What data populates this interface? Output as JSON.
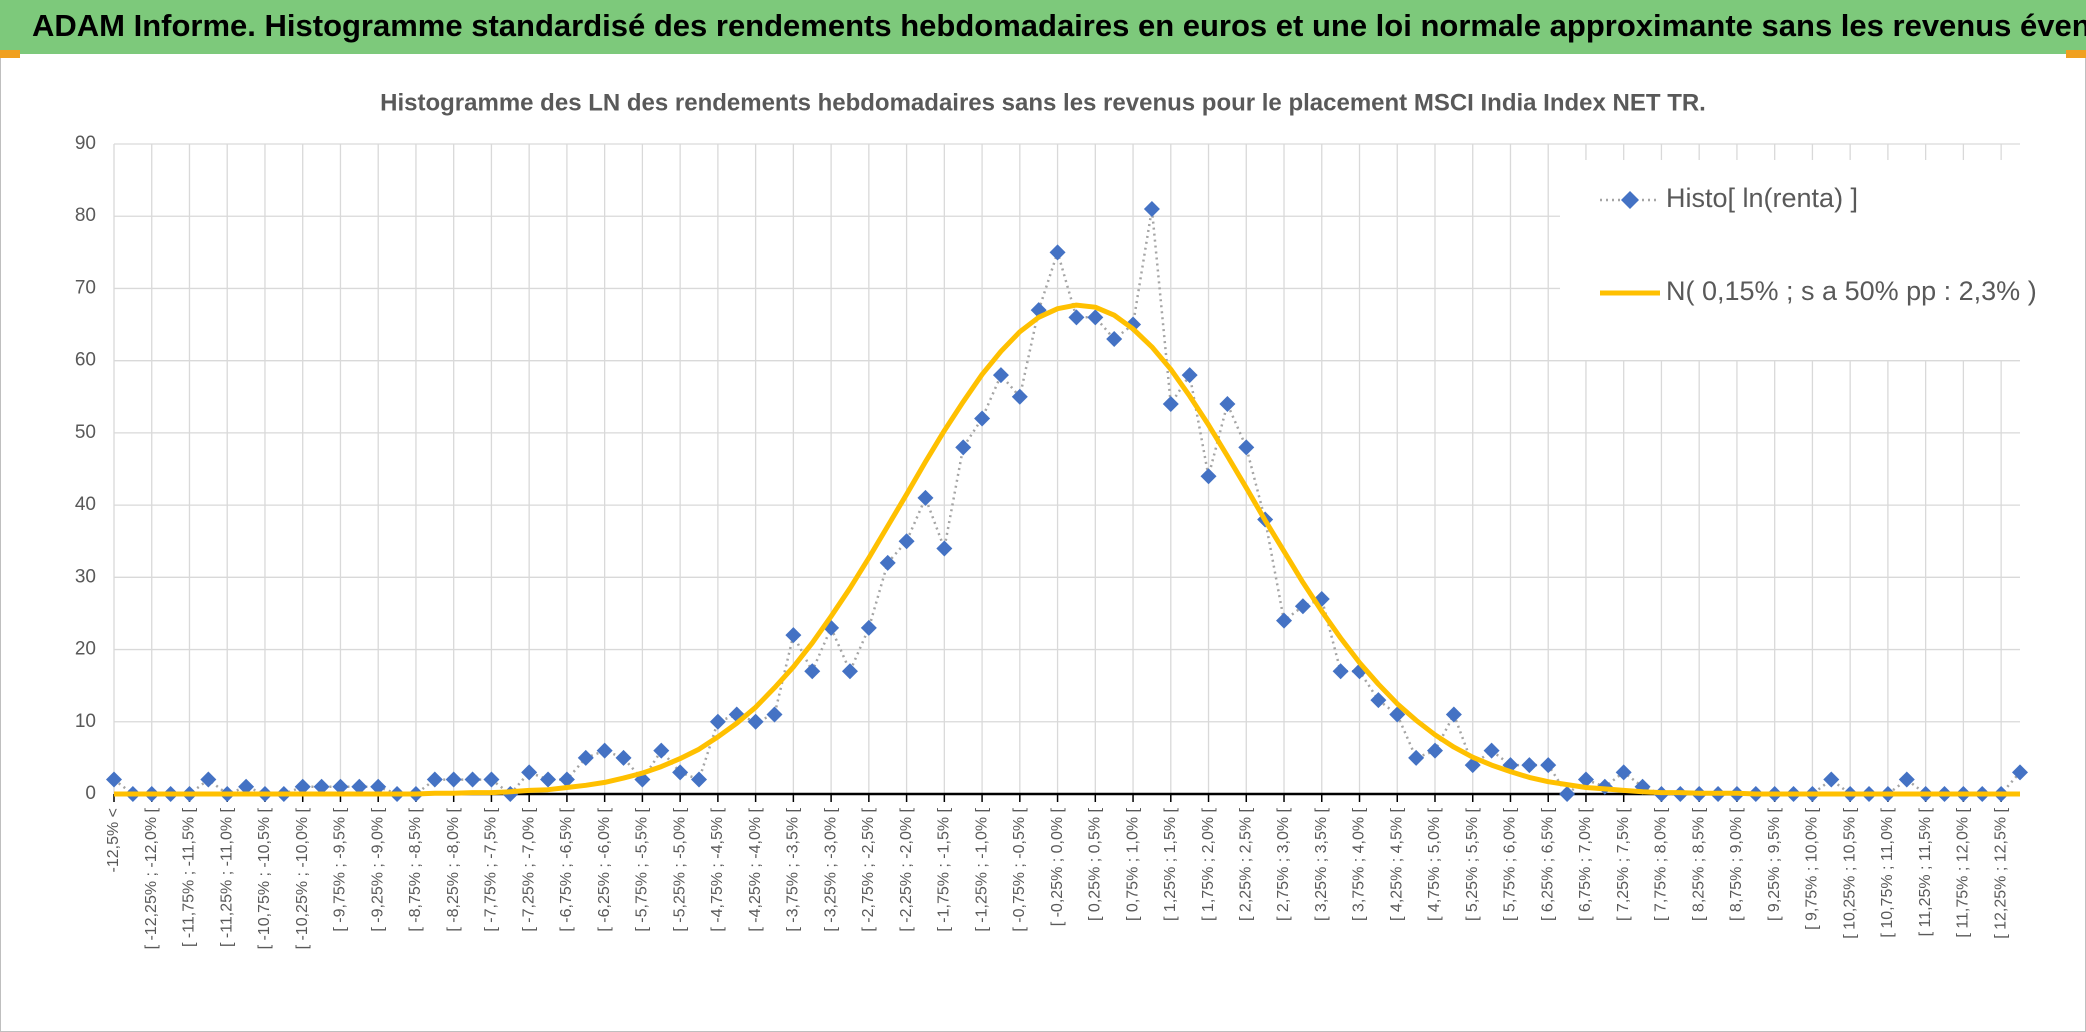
{
  "header": {
    "title": "ADAM Informe. Histogramme standardisé des rendements hebdomadaires en euros et une loi normale approximante sans les revenus éventuels"
  },
  "chart_data": {
    "type": "line",
    "title": "Histogramme des LN des rendements hebdomadaires sans les revenus pour le placement MSCI India Index NET TR.",
    "categories": [
      "-12,5% <",
      null,
      "[ -12,25% ; -12,0% [",
      null,
      "[ -11,75% ; -11,5% [",
      null,
      "[ -11,25% ; -11,0% [",
      null,
      "[ -10,75% ; -10,5% [",
      null,
      "[ -10,25% ; -10,0% [",
      null,
      "[ -9,75% ; -9,5% [",
      null,
      "[ -9,25% ; -9,0% [",
      null,
      "[ -8,75% ; -8,5% [",
      null,
      "[ -8,25% ; -8,0% [",
      null,
      "[ -7,75% ; -7,5% [",
      null,
      "[ -7,25% ; -7,0% [",
      null,
      "[ -6,75% ; -6,5% [",
      null,
      "[ -6,25% ; -6,0% [",
      null,
      "[ -5,75% ; -5,5% [",
      null,
      "[ -5,25% ; -5,0% [",
      null,
      "[ -4,75% ; -4,5% [",
      null,
      "[ -4,25% ; -4,0% [",
      null,
      "[ -3,75% ; -3,5% [",
      null,
      "[ -3,25% ; -3,0% [",
      null,
      "[ -2,75% ; -2,5% [",
      null,
      "[ -2,25% ; -2,0% [",
      null,
      "[ -1,75% ; -1,5% [",
      null,
      "[ -1,25% ; -1,0% [",
      null,
      "[ -0,75% ; -0,5% [",
      null,
      "[ -0,25% ; 0,0% [",
      null,
      "[ 0,25% ; 0,5% [",
      null,
      "[ 0,75% ; 1,0% [",
      null,
      "[ 1,25% ; 1,5% [",
      null,
      "[ 1,75% ; 2,0% [",
      null,
      "[ 2,25% ; 2,5% [",
      null,
      "[ 2,75% ; 3,0% [",
      null,
      "[ 3,25% ; 3,5% [",
      null,
      "[ 3,75% ; 4,0% [",
      null,
      "[ 4,25% ; 4,5% [",
      null,
      "[ 4,75% ; 5,0% [",
      null,
      "[ 5,25% ; 5,5% [",
      null,
      "[ 5,75% ; 6,0% [",
      null,
      "[ 6,25% ; 6,5% [",
      null,
      "[ 6,75% ; 7,0% [",
      null,
      "[ 7,25% ; 7,5% [",
      null,
      "[ 7,75% ; 8,0% [",
      null,
      "[ 8,25% ; 8,5% [",
      null,
      "[ 8,75% ; 9,0% [",
      null,
      "[ 9,25% ; 9,5% [",
      null,
      "[ 9,75% ; 10,0% [",
      null,
      "[ 10,25% ; 10,5% [",
      null,
      "[ 10,75% ; 11,0% [",
      null,
      "[ 11,25% ; 11,5% [",
      null,
      "[ 11,75% ; 12,0% [",
      null,
      "[ 12,25% ; 12,5% [",
      null
    ],
    "series": [
      {
        "name": "Histo[ ln(renta) ]",
        "color": "#4472c4",
        "line_color": "#a5a5a5",
        "values": [
          2,
          0,
          0,
          0,
          0,
          2,
          0,
          1,
          0,
          0,
          1,
          1,
          1,
          1,
          1,
          0,
          0,
          2,
          2,
          2,
          2,
          0,
          3,
          2,
          2,
          5,
          6,
          5,
          2,
          6,
          3,
          2,
          10,
          11,
          10,
          11,
          22,
          17,
          23,
          17,
          23,
          32,
          35,
          41,
          34,
          48,
          52,
          58,
          55,
          67,
          75,
          66,
          66,
          63,
          65,
          81,
          54,
          58,
          44,
          54,
          48,
          38,
          24,
          26,
          27,
          17,
          17,
          13,
          11,
          5,
          6,
          11,
          4,
          6,
          4,
          4,
          4,
          0,
          2,
          1,
          3,
          1,
          0,
          0,
          0,
          0,
          0,
          0,
          0,
          0,
          0,
          2,
          0,
          0,
          0,
          2,
          0,
          0,
          0,
          0,
          0,
          3
        ]
      },
      {
        "name": "N( 0,15% ; s a 50% pp : 2,3% )",
        "color": "#ffc000",
        "values": [
          0,
          0,
          0,
          0,
          0,
          0,
          0,
          0,
          0,
          0,
          0,
          0,
          0,
          0,
          0,
          0,
          0,
          0.1,
          0.1,
          0.2,
          0.2,
          0.3,
          0.5,
          0.6,
          0.9,
          1.2,
          1.6,
          2.2,
          2.9,
          3.8,
          4.9,
          6.2,
          7.9,
          9.8,
          12.0,
          14.7,
          17.6,
          20.9,
          24.6,
          28.5,
          32.7,
          37.1,
          41.5,
          46.0,
          50.3,
          54.3,
          58.1,
          61.3,
          64.0,
          66.0,
          67.2,
          67.7,
          67.4,
          66.3,
          64.4,
          61.9,
          58.8,
          55.1,
          51.1,
          46.8,
          42.4,
          37.9,
          33.6,
          29.3,
          25.3,
          21.6,
          18.2,
          15.2,
          12.5,
          10.2,
          8.2,
          6.5,
          5.1,
          4.0,
          3.1,
          2.3,
          1.7,
          1.3,
          0.9,
          0.7,
          0.5,
          0.3,
          0.2,
          0.2,
          0.1,
          0.1,
          0.1,
          0,
          0,
          0,
          0,
          0,
          0,
          0,
          0,
          0,
          0,
          0,
          0,
          0,
          0,
          0
        ]
      }
    ],
    "ylim": [
      0,
      90
    ],
    "yticks": [
      0,
      10,
      20,
      30,
      40,
      50,
      60,
      70,
      80,
      90
    ],
    "grid": true,
    "legend": "upper right"
  }
}
